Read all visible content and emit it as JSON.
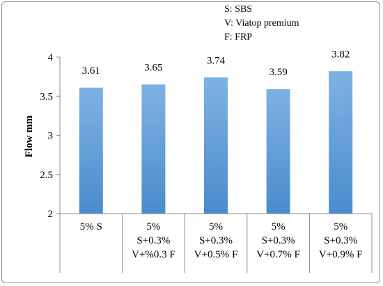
{
  "chart_data": {
    "type": "bar",
    "categories": [
      [
        "5% S"
      ],
      [
        "5%",
        "S+0.3%",
        "V+%0.3 F"
      ],
      [
        "5%",
        "S+0.3%",
        "V+0.5% F"
      ],
      [
        "5%",
        "S+0.3%",
        "V+0.7% F"
      ],
      [
        "5%",
        "S+0.3%",
        "V+0.9% F"
      ]
    ],
    "values": [
      3.61,
      3.65,
      3.74,
      3.59,
      3.82
    ],
    "data_labels": [
      "3.61",
      "3.65",
      "3.74",
      "3.59",
      "3.82"
    ],
    "ylabel": "Flow  mm",
    "xlabel": "",
    "ylim": [
      2,
      4
    ],
    "yticks": [
      "2",
      "2.5",
      "3",
      "3.5",
      "4"
    ],
    "grid": false,
    "bar_color": "#5b9bd5",
    "annotation": [
      "S: SBS",
      "V: Viatop premium",
      "F: FRP"
    ]
  }
}
